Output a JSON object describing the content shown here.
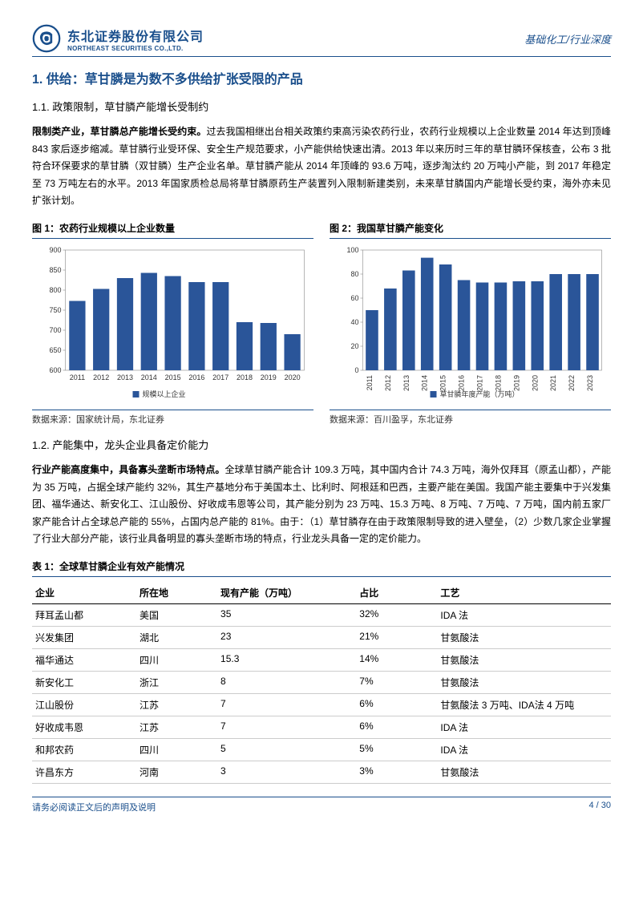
{
  "header": {
    "company_cn": "东北证券股份有限公司",
    "company_en": "NORTHEAST SECURITIES CO.,LTD.",
    "right_text": "基础化工/行业深度"
  },
  "section1": {
    "title": "1.  供给：草甘膦是为数不多供给扩张受限的产品",
    "sub1_title": "1.1.  政策限制，草甘膦产能增长受制约",
    "para1_bold": "限制类产业，草甘膦总产能增长受约束。",
    "para1_rest": "过去我国相继出台相关政策约束高污染农药行业，农药行业规模以上企业数量 2014 年达到顶峰 843 家后逐步缩减。草甘膦行业受环保、安全生产规范要求，小产能供给快速出清。2013 年以来历时三年的草甘膦环保核查，公布 3 批符合环保要求的草甘膦（双甘膦）生产企业名单。草甘膦产能从 2014 年顶峰的 93.6 万吨，逐步淘汰约 20 万吨小产能，到 2017 年稳定至 73 万吨左右的水平。2013 年国家质检总局将草甘膦原药生产装置列入限制新建类别，未来草甘膦国内产能增长受约束，海外亦未见扩张计划。"
  },
  "chart1": {
    "title": "图 1：农药行业规模以上企业数量",
    "type": "bar",
    "categories": [
      "2011",
      "2012",
      "2013",
      "2014",
      "2015",
      "2016",
      "2017",
      "2018",
      "2019",
      "2020"
    ],
    "values": [
      773,
      803,
      830,
      843,
      835,
      820,
      820,
      720,
      718,
      690
    ],
    "ylim": [
      600,
      900
    ],
    "ytick_step": 50,
    "bar_color": "#2a5599",
    "legend": "规模以上企业",
    "source": "数据来源：国家统计局，东北证券",
    "font_size_axis": 9
  },
  "chart2": {
    "title": "图 2：我国草甘膦产能变化",
    "type": "bar",
    "categories": [
      "2011",
      "2012",
      "2013",
      "2014",
      "2015",
      "2016",
      "2017",
      "2018",
      "2019",
      "2020",
      "2021",
      "2022",
      "2023"
    ],
    "values": [
      50,
      68,
      83,
      93.6,
      88,
      75,
      73,
      73,
      74,
      74,
      80,
      80,
      80
    ],
    "ylim": [
      0,
      100
    ],
    "ytick_step": 20,
    "bar_color": "#2a5599",
    "legend": "草甘膦年度产能（万吨）",
    "source": "数据来源：百川盈孚，东北证券",
    "font_size_axis": 9
  },
  "section2": {
    "title": "1.2.  产能集中，龙头企业具备定价能力",
    "para1_bold": "行业产能高度集中，具备寡头垄断市场特点。",
    "para1_rest": "全球草甘膦产能合计 109.3 万吨，其中国内合计 74.3 万吨，海外仅拜耳（原孟山都），产能为 35 万吨，占据全球产能约 32%，其生产基地分布于美国本土、比利时、阿根廷和巴西，主要产能在美国。我国产能主要集中于兴发集团、福华通达、新安化工、江山股份、好收成韦恩等公司，其产能分别为 23 万吨、15.3 万吨、8 万吨、7 万吨、7 万吨，国内前五家厂家产能合计占全球总产能的 55%，占国内总产能的 81%。由于：（1）草甘膦存在由于政策限制导致的进入壁垒，（2）少数几家企业掌握了行业大部分产能，该行业具备明显的寡头垄断市场的特点，行业龙头具备一定的定价能力。"
  },
  "table1": {
    "title": "表 1：全球草甘膦企业有效产能情况",
    "columns": [
      "企业",
      "所在地",
      "现有产能（万吨）",
      "占比",
      "工艺"
    ],
    "rows": [
      [
        "拜耳孟山都",
        "美国",
        "35",
        "32%",
        "IDA 法"
      ],
      [
        "兴发集团",
        "湖北",
        "23",
        "21%",
        "甘氨酸法"
      ],
      [
        "福华通达",
        "四川",
        "15.3",
        "14%",
        "甘氨酸法"
      ],
      [
        "新安化工",
        "浙江",
        "8",
        "7%",
        "甘氨酸法"
      ],
      [
        "江山股份",
        "江苏",
        "7",
        "6%",
        "甘氨酸法 3 万吨、IDA法 4 万吨"
      ],
      [
        "好收成韦恩",
        "江苏",
        "7",
        "6%",
        "IDA 法"
      ],
      [
        "和邦农药",
        "四川",
        "5",
        "5%",
        "IDA 法"
      ],
      [
        "许昌东方",
        "河南",
        "3",
        "3%",
        "甘氨酸法"
      ]
    ],
    "col_widths": [
      "18%",
      "14%",
      "24%",
      "14%",
      "30%"
    ]
  },
  "footer": {
    "left": "请务必阅读正文后的声明及说明",
    "right": "4 / 30"
  }
}
